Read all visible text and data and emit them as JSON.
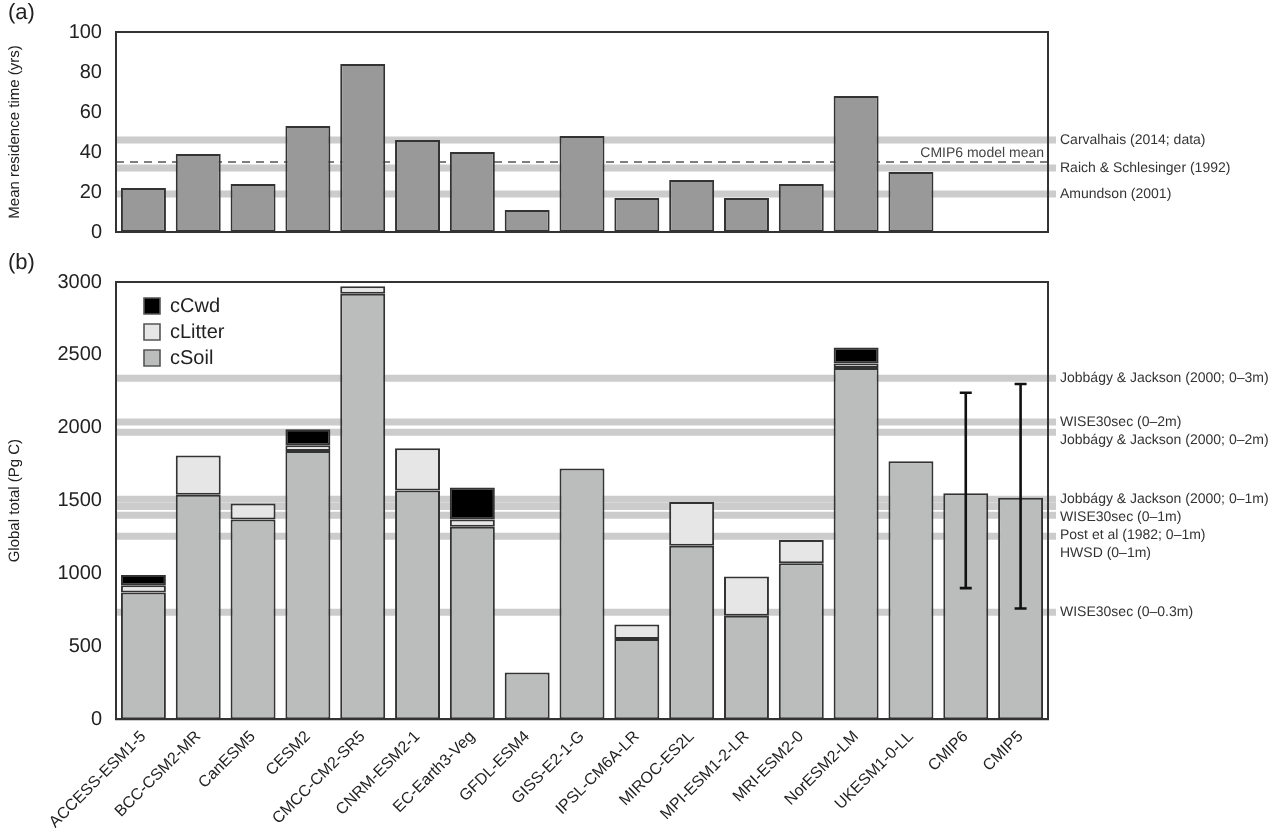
{
  "chart_data": [
    {
      "type": "bar",
      "ylabel": "Mean residence time (yrs)",
      "annotations": [
        "(a)"
      ],
      "categories": [
        null,
        null,
        null,
        null,
        null,
        null,
        null,
        null,
        null,
        null,
        null,
        null,
        null,
        null,
        null,
        null,
        null
      ],
      "values": [
        22,
        39,
        24,
        53,
        84,
        46,
        40,
        11,
        48,
        17,
        26,
        17,
        24,
        68,
        30,
        null,
        null
      ],
      "color": "#999999",
      "ylim": [
        0,
        100
      ],
      "yticks": [
        0,
        20,
        40,
        60,
        80,
        100
      ],
      "tick_labels": "y",
      "grid": false,
      "ref_lines": [
        {
          "axis": "y",
          "value": 46,
          "label": "Carvalhais (2014; data)",
          "color": "#cccccc"
        },
        {
          "axis": "y",
          "value": 35,
          "label": "CMIP6 model mean",
          "color": "#555555",
          "line_style": "dashed"
        },
        {
          "axis": "y",
          "value": 32,
          "label": "Raich & Schlesinger (1992)",
          "color": "#cccccc"
        },
        {
          "axis": "y",
          "value": 19,
          "label": "Amundson (2001)",
          "color": "#cccccc"
        }
      ]
    },
    {
      "type": "bar",
      "ylabel": "Global total (Pg C)",
      "annotations": [
        "(b)"
      ],
      "stacked": true,
      "legend": "top left",
      "grid": false,
      "categories": [
        "ACCESS-ESM1-5",
        "BCC-CSM2-MR",
        "CanESM5",
        "CESM2",
        "CMCC-CM2-SR5",
        "CNRM-ESM2-1",
        "EC-Earth3-Veg",
        "GFDL-ESM4",
        "GISS-E2-1-G",
        "IPSL-CM6A-LR",
        "MIROC-ES2L",
        "MPI-ESM1-2-LR",
        "MRI-ESM2-0",
        "NorESM2-LM",
        "UKESM1-0-LL",
        "CMIP6",
        "CMIP5"
      ],
      "series": [
        {
          "name": "cSoil",
          "color": "#bbbdbc",
          "values": [
            870,
            1540,
            1370,
            1840,
            2920,
            1570,
            1320,
            320,
            1720,
            550,
            1190,
            710,
            1070,
            2410,
            1770,
            1550,
            1520
          ],
          "errors": [
            null,
            null,
            null,
            null,
            null,
            null,
            null,
            null,
            null,
            null,
            null,
            null,
            null,
            null,
            null,
            [
              900,
              2240
            ],
            [
              760,
              2300
            ]
          ]
        },
        {
          "name": "cLitter",
          "color": "#e6e6e6",
          "values": [
            50,
            270,
            110,
            40,
            50,
            290,
            50,
            null,
            null,
            100,
            300,
            270,
            160,
            30,
            null,
            null,
            null
          ]
        },
        {
          "name": "cCwd",
          "color": "#000000",
          "values": [
            70,
            null,
            null,
            110,
            null,
            null,
            220,
            null,
            null,
            null,
            null,
            null,
            null,
            110,
            null,
            null,
            null
          ]
        }
      ],
      "ylim": [
        0,
        3000
      ],
      "yticks": [
        0,
        500,
        1000,
        1500,
        2000,
        2500,
        3000
      ],
      "ref_lines": [
        {
          "axis": "y",
          "value": 2340,
          "label": "Jobbágy & Jackson (2000; 0–3m)",
          "color": "#cccccc"
        },
        {
          "axis": "y",
          "value": 2040,
          "label": "WISE30sec (0–2m)",
          "color": "#cccccc"
        },
        {
          "axis": "y",
          "value": 1970,
          "label": "Jobbágy & Jackson (2000; 0–2m)",
          "color": "#cccccc"
        },
        {
          "axis": "y",
          "value": 1510,
          "label": "Jobbágy & Jackson (2000; 0–1m)",
          "color": "#cccccc"
        },
        {
          "axis": "y",
          "value": 1460,
          "label": "WISE30sec (0–1m)",
          "color": "#cccccc"
        },
        {
          "axis": "y",
          "value": 1400,
          "label": "Post et al (1982; 0–1m)",
          "color": "#cccccc"
        },
        {
          "axis": "y",
          "value": 1255,
          "label": "HWSD (0–1m)",
          "color": "#cccccc"
        },
        {
          "axis": "y",
          "value": 735,
          "label": "WISE30sec (0–0.3m)",
          "color": "#cccccc"
        }
      ]
    }
  ]
}
